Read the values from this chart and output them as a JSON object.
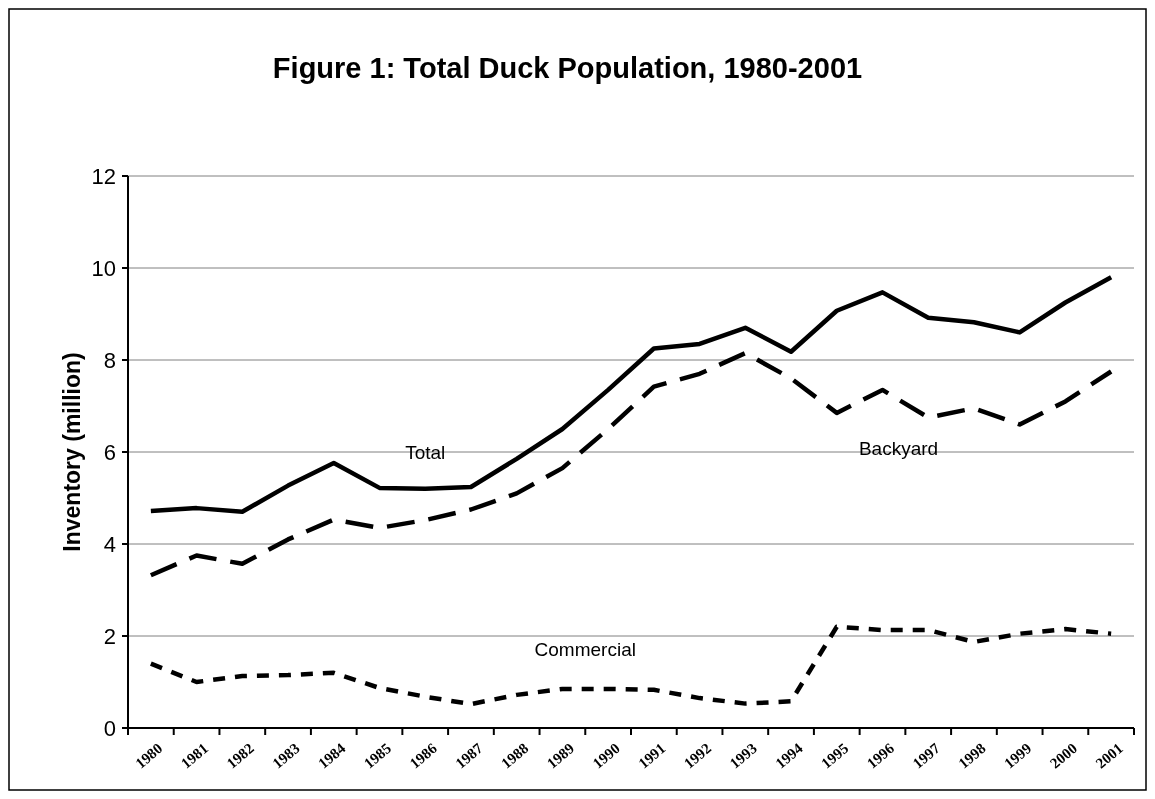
{
  "chart_data": {
    "type": "line",
    "title": "Figure 1: Total Duck Population, 1980-2001",
    "ylabel": "Inventory (million)",
    "categories": [
      "1980",
      "1981",
      "1982",
      "1983",
      "1984",
      "1985",
      "1986",
      "1987",
      "1988",
      "1989",
      "1990",
      "1991",
      "1992",
      "1993",
      "1994",
      "1995",
      "1996",
      "1997",
      "1998",
      "1999",
      "2000",
      "2001"
    ],
    "series": [
      {
        "name": "Total",
        "color": "#000000",
        "line_style": "solid",
        "values": [
          4.72,
          4.78,
          4.7,
          5.27,
          5.76,
          5.22,
          5.2,
          5.24,
          5.85,
          6.5,
          7.35,
          8.25,
          8.35,
          8.7,
          8.18,
          9.07,
          9.47,
          8.92,
          8.82,
          8.6,
          9.25,
          9.8
        ]
      },
      {
        "name": "Backyard",
        "color": "#000000",
        "line_style": "dashed",
        "values": [
          3.32,
          3.75,
          3.57,
          4.1,
          4.53,
          4.35,
          4.52,
          4.75,
          5.1,
          5.65,
          6.5,
          7.42,
          7.7,
          8.15,
          7.6,
          6.85,
          7.35,
          6.75,
          6.95,
          6.6,
          7.1,
          7.75
        ]
      },
      {
        "name": "Commercial",
        "color": "#000000",
        "line_style": "dotted",
        "values": [
          1.4,
          1.0,
          1.13,
          1.15,
          1.2,
          0.87,
          0.68,
          0.52,
          0.72,
          0.85,
          0.85,
          0.83,
          0.65,
          0.53,
          0.58,
          2.2,
          2.13,
          2.13,
          1.87,
          2.05,
          2.15,
          2.05
        ]
      }
    ],
    "ylim": [
      0,
      12
    ],
    "yticks": [
      0,
      2,
      4,
      6,
      8,
      10,
      12
    ],
    "grid": "y",
    "marker": "none"
  }
}
